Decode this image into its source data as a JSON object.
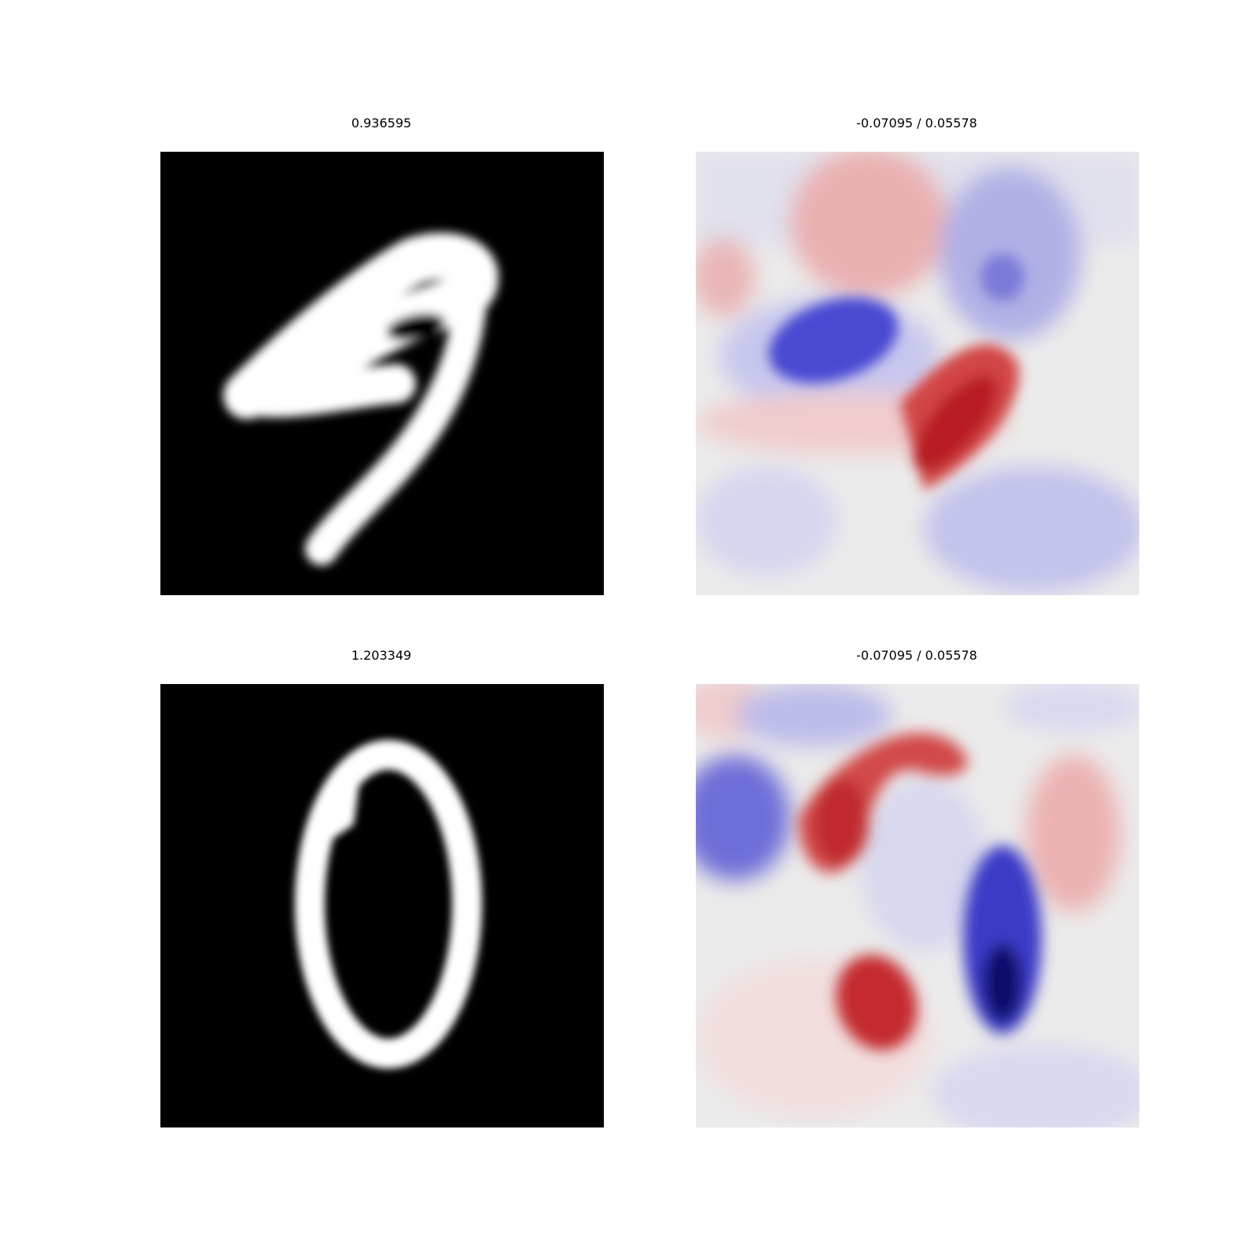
{
  "panels": [
    {
      "title": "0.936595",
      "kind": "digit-image",
      "digit": "9",
      "colormap": "gray"
    },
    {
      "title": "-0.07095 / 0.05578",
      "kind": "heatmap",
      "colormap": "seismic"
    },
    {
      "title": "1.203349",
      "kind": "digit-image",
      "digit": "0",
      "colormap": "gray"
    },
    {
      "title": "-0.07095 / 0.05578",
      "kind": "heatmap",
      "colormap": "seismic"
    }
  ],
  "colors": {
    "background": "#ffffff",
    "image_bg": "#000000",
    "stroke": "#ffffff",
    "heat_neutral": "#ecebeb",
    "heat_red": "#c0202a",
    "heat_blue": "#2a2ad0"
  }
}
